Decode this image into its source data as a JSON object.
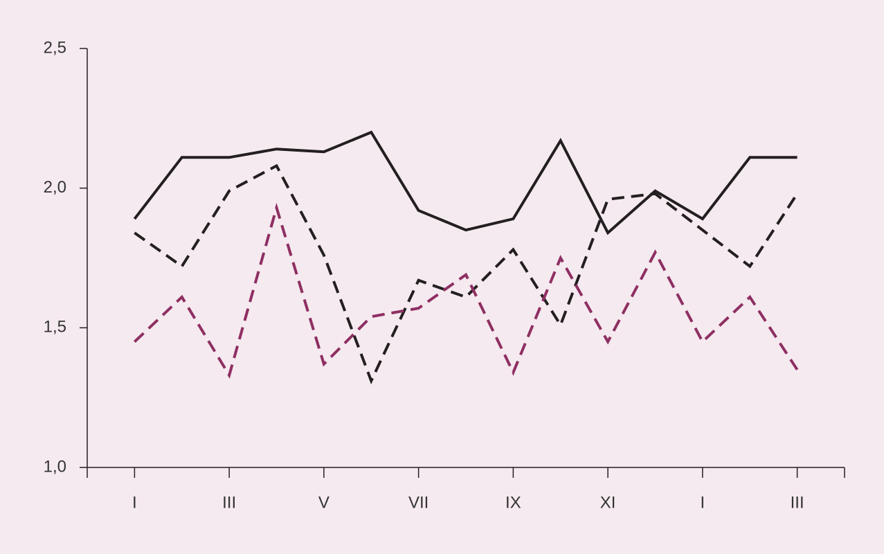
{
  "chart_data": {
    "type": "line",
    "categories": [
      "I",
      null,
      "III",
      null,
      "V",
      null,
      "VII",
      null,
      "IX",
      null,
      "XI",
      null,
      "I",
      null,
      "III"
    ],
    "series": [
      {
        "color": "#231f20",
        "style": "solid",
        "values": [
          1.89,
          2.11,
          2.11,
          2.14,
          2.13,
          2.2,
          1.92,
          1.85,
          1.89,
          2.17,
          1.84,
          1.99,
          1.89,
          2.11,
          2.11
        ]
      },
      {
        "color": "#231f20",
        "style": "dashed",
        "values": [
          1.84,
          1.72,
          1.99,
          2.08,
          1.76,
          1.31,
          1.67,
          1.61,
          1.78,
          1.51,
          1.96,
          1.98,
          1.85,
          1.72,
          1.98
        ]
      },
      {
        "color": "#8e2f63",
        "style": "dashed",
        "values": [
          1.45,
          1.61,
          1.33,
          1.93,
          1.37,
          1.54,
          1.57,
          1.69,
          1.34,
          1.75,
          1.45,
          1.77,
          1.45,
          1.61,
          1.35
        ]
      }
    ],
    "ylim": [
      1.0,
      2.5
    ],
    "yticks": [
      {
        "value": 1.0,
        "label": "1,0"
      },
      {
        "value": 1.5,
        "label": "1,5"
      },
      {
        "value": 2.0,
        "label": "2,0"
      },
      {
        "value": 2.5,
        "label": "2,5"
      }
    ],
    "grid": false
  }
}
